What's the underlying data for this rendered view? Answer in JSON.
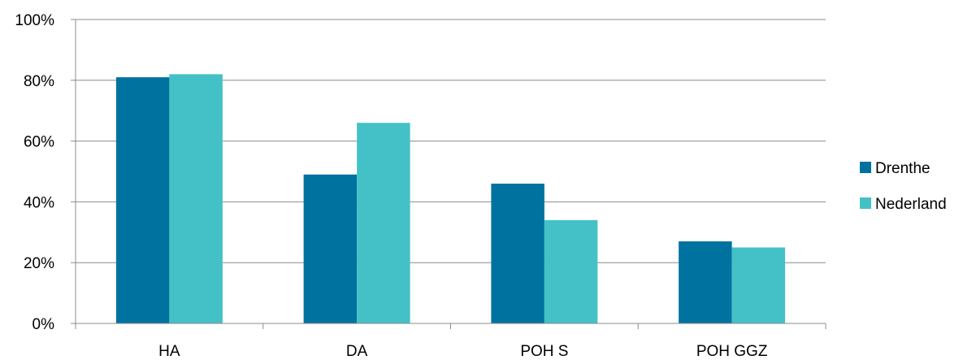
{
  "chart_data": {
    "type": "bar",
    "categories": [
      "HA",
      "DA",
      "POH S",
      "POH GGZ"
    ],
    "series": [
      {
        "name": "Drenthe",
        "color": "#0072A0",
        "values": [
          81,
          49,
          46,
          27
        ]
      },
      {
        "name": "Nederland",
        "color": "#44C1C7",
        "values": [
          82,
          66,
          34,
          25
        ]
      }
    ],
    "y_ticks": [
      "0%",
      "20%",
      "40%",
      "60%",
      "80%",
      "100%"
    ],
    "ylim": [
      0,
      100
    ],
    "grid": true,
    "legend": "right",
    "title": "",
    "xlabel": "",
    "ylabel": ""
  }
}
